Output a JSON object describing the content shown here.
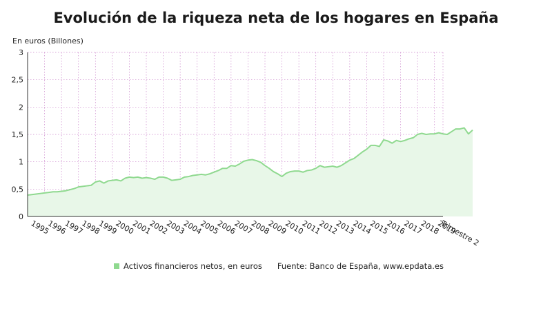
{
  "colors": {
    "line": "#8fd98f",
    "fill": "#e8f7e8",
    "grid": "#cc88cc",
    "axis": "#333333"
  },
  "source": "Fuente: Banco de España, www.epdata.es",
  "chart_data": {
    "type": "area",
    "title": "Evolución de la riqueza neta de los hogares en España",
    "ylabel": "En euros (Billones)",
    "xlabel": "",
    "ylim": [
      0,
      3
    ],
    "yticks": [
      "0",
      "0,5",
      "1",
      "1,5",
      "2",
      "2,5",
      "3"
    ],
    "yticks_values": [
      0,
      0.5,
      1,
      1.5,
      2,
      2.5,
      3
    ],
    "xticks": [
      "1995",
      "1996",
      "1997",
      "1998",
      "1999",
      "2000",
      "2001",
      "2002",
      "2003",
      "2004",
      "2005",
      "2006",
      "2007",
      "2008",
      "2009",
      "2010",
      "2011",
      "2012",
      "2013",
      "2014",
      "2015",
      "2016",
      "2017",
      "2018",
      "2019",
      "Trimestre 2"
    ],
    "grid": "vertical-and-horizontal dotted",
    "legend": "bottom",
    "series": [
      {
        "name": "Activos financieros netos, en euros",
        "x_start": 1995.0,
        "x_step": 0.25,
        "values": [
          0.39,
          0.4,
          0.41,
          0.42,
          0.43,
          0.44,
          0.45,
          0.45,
          0.46,
          0.47,
          0.49,
          0.51,
          0.54,
          0.55,
          0.56,
          0.57,
          0.63,
          0.65,
          0.61,
          0.65,
          0.66,
          0.67,
          0.65,
          0.7,
          0.72,
          0.71,
          0.72,
          0.7,
          0.71,
          0.7,
          0.68,
          0.72,
          0.72,
          0.7,
          0.66,
          0.67,
          0.68,
          0.72,
          0.73,
          0.75,
          0.76,
          0.77,
          0.76,
          0.78,
          0.81,
          0.84,
          0.88,
          0.88,
          0.93,
          0.92,
          0.96,
          1.01,
          1.03,
          1.04,
          1.02,
          0.99,
          0.93,
          0.88,
          0.82,
          0.78,
          0.73,
          0.79,
          0.82,
          0.83,
          0.83,
          0.81,
          0.84,
          0.85,
          0.88,
          0.93,
          0.9,
          0.91,
          0.92,
          0.9,
          0.93,
          0.98,
          1.03,
          1.06,
          1.12,
          1.18,
          1.23,
          1.3,
          1.3,
          1.28,
          1.4,
          1.38,
          1.34,
          1.39,
          1.37,
          1.39,
          1.42,
          1.44,
          1.5,
          1.52,
          1.5,
          1.51,
          1.51,
          1.53,
          1.51,
          1.5,
          1.55,
          1.6,
          1.6,
          1.62,
          1.51,
          1.58
        ]
      }
    ]
  }
}
